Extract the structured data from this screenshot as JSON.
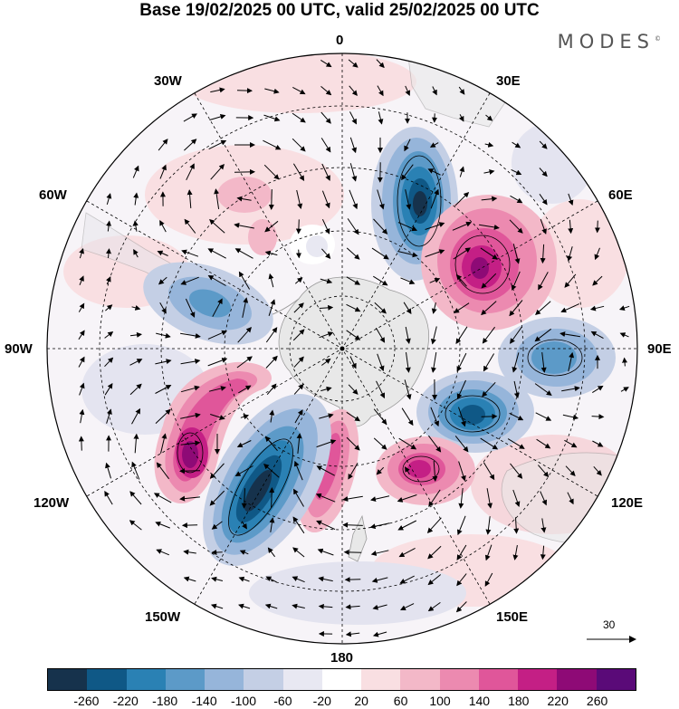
{
  "title": "Base 19/02/2025 00 UTC, valid 25/02/2025 00 UTC",
  "brand": "MODES",
  "brand_mark": "©",
  "map": {
    "projection": "polar stereographic, south pole centered",
    "fill_variable": "shaded anomaly field",
    "vectors": "wind arrows",
    "scale_vector_label": "30",
    "longitude_labels": [
      "0",
      "30E",
      "60E",
      "90E",
      "120E",
      "150E",
      "180",
      "150W",
      "120W",
      "90W",
      "60W",
      "30W"
    ],
    "features": [
      {
        "name": "negative-center-south-atlantic",
        "sign": "negative",
        "sector": "20E"
      },
      {
        "name": "positive-center-south-indian-west",
        "sign": "positive",
        "sector": "50E"
      },
      {
        "name": "negative-center-south-indian-east",
        "sign": "negative",
        "sector": "90E"
      },
      {
        "name": "negative-center-south-of-australia",
        "sign": "negative",
        "sector": "110E"
      },
      {
        "name": "positive-center-south-of-australia",
        "sign": "positive",
        "sector": "140E"
      },
      {
        "name": "positive-center-ross-sea",
        "sign": "positive",
        "sector": "175W"
      },
      {
        "name": "negative-center-south-pacific",
        "sign": "negative",
        "sector": "150W"
      },
      {
        "name": "positive-center-southeast-pacific",
        "sign": "positive",
        "sector": "120W"
      },
      {
        "name": "negative-center-bellingshausen-sea",
        "sign": "negative",
        "sector": "75W"
      }
    ]
  },
  "colorbar": {
    "colors": [
      "#16324c",
      "#0f5886",
      "#2a81b4",
      "#5c9ac8",
      "#96b5da",
      "#c4cfe5",
      "#e8e8f2",
      "#ffffff",
      "#f9dfe2",
      "#f3b8c8",
      "#ec8ab0",
      "#e0569a",
      "#c41f85",
      "#8e0a76",
      "#5a0a78"
    ],
    "ticks": [
      "-260",
      "-220",
      "-180",
      "-140",
      "-100",
      "-60",
      "-20",
      "20",
      "60",
      "100",
      "140",
      "180",
      "220",
      "260"
    ]
  }
}
